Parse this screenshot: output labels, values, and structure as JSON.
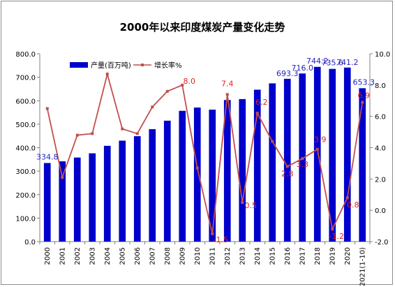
{
  "chart_data": {
    "type": "bar",
    "title": "2000年以来印度煤炭产量变化走势",
    "categories": [
      "2000",
      "2001",
      "2002",
      "2003",
      "2004",
      "2005",
      "2006",
      "2007",
      "2008",
      "2009",
      "2010",
      "2011",
      "2012",
      "2013",
      "2014",
      "2015",
      "2016",
      "2017",
      "2018",
      "2019",
      "2020",
      "2021(1-10)"
    ],
    "series": [
      {
        "name": "产量(百万吨)",
        "type": "bar",
        "axis": "left",
        "color": "#0000cc",
        "values": [
          334.8,
          342,
          358,
          376,
          408,
          430,
          449,
          479,
          515,
          557,
          571,
          562,
          603,
          607,
          647,
          674,
          693.3,
          716.0,
          744.2,
          735.6,
          741.2,
          653.3
        ],
        "labels": {
          "0": "334.8",
          "16": "693.3",
          "17": "716.0",
          "18": "744.2",
          "19": "735.6",
          "20": "741.2",
          "21": "653.3"
        }
      },
      {
        "name": "增长率%",
        "type": "line",
        "axis": "right",
        "color": "#c0504d",
        "values": [
          6.5,
          2.1,
          4.8,
          4.9,
          8.7,
          5.2,
          4.9,
          6.6,
          7.6,
          8.0,
          2.7,
          -1.5,
          7.4,
          0.5,
          6.2,
          4.4,
          2.8,
          3.3,
          3.9,
          -1.2,
          0.8,
          6.9
        ],
        "labels": {
          "9": "8.0",
          "11": "-1.5",
          "12": "7.4",
          "13": "0.5",
          "14": "6.2",
          "16": "2.8",
          "17": "3.3",
          "18": "3.9",
          "19": "-1.2",
          "20": "0.8",
          "21": "6.9"
        }
      }
    ],
    "y_left": {
      "min": 0,
      "max": 800,
      "step": 100,
      "ticks": [
        "0.0",
        "100.0",
        "200.0",
        "300.0",
        "400.0",
        "500.0",
        "600.0",
        "700.0",
        "800.0"
      ]
    },
    "y_right": {
      "min": -2,
      "max": 10,
      "step": 2,
      "ticks": [
        "-2.0",
        "0.0",
        "2.0",
        "4.0",
        "6.0",
        "8.0",
        "10.0"
      ]
    },
    "grid": false,
    "legend_position": "top-left"
  }
}
